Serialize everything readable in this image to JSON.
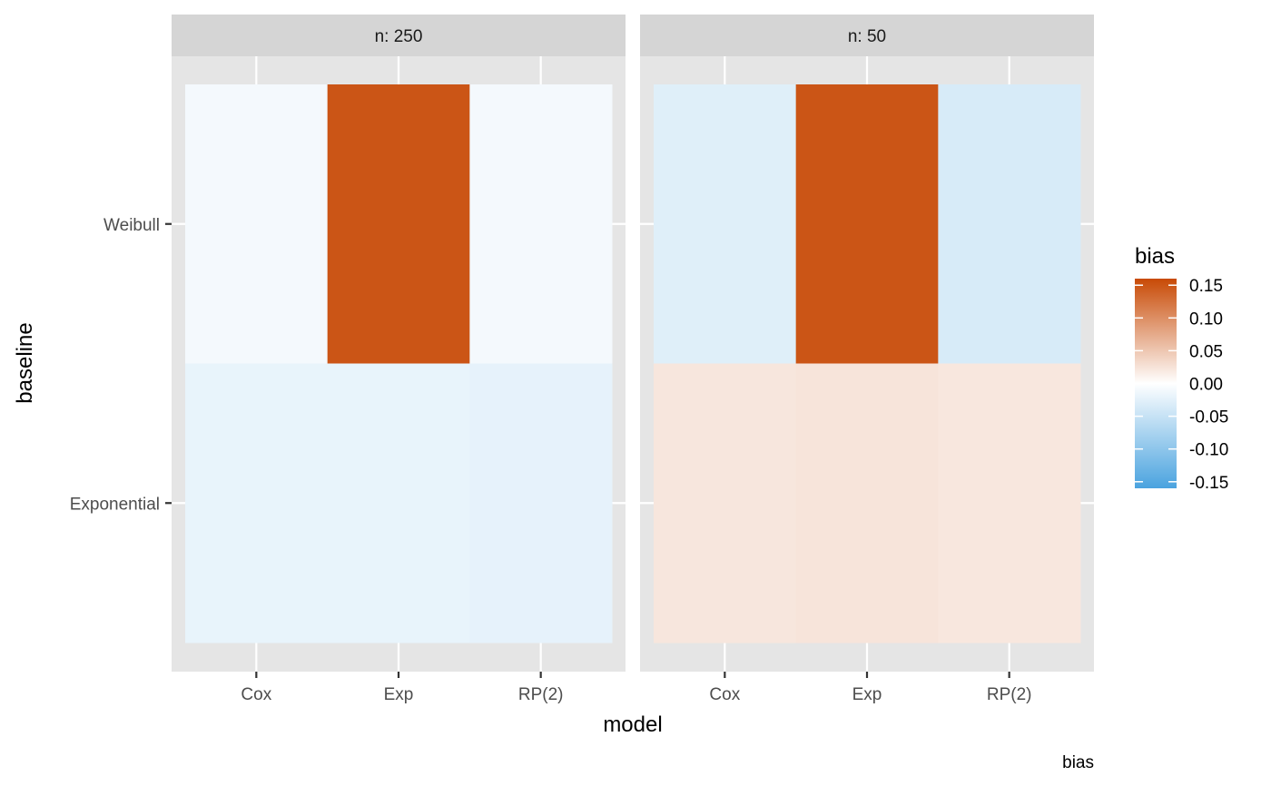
{
  "chart_data": {
    "type": "heatmap",
    "xlabel": "model",
    "ylabel": "baseline",
    "x_categories": [
      "Cox",
      "Exp",
      "RP(2)"
    ],
    "y_categories": [
      "Exponential",
      "Weibull"
    ],
    "facets": [
      {
        "label": "n: 250",
        "cells": [
          {
            "model": "Cox",
            "baseline": "Weibull",
            "value": -0.01
          },
          {
            "model": "Exp",
            "baseline": "Weibull",
            "value": 0.15
          },
          {
            "model": "RP(2)",
            "baseline": "Weibull",
            "value": -0.01
          },
          {
            "model": "Cox",
            "baseline": "Exponential",
            "value": -0.02
          },
          {
            "model": "Exp",
            "baseline": "Exponential",
            "value": -0.02
          },
          {
            "model": "RP(2)",
            "baseline": "Exponential",
            "value": -0.022
          }
        ]
      },
      {
        "label": "n: 50",
        "cells": [
          {
            "model": "Cox",
            "baseline": "Weibull",
            "value": -0.028
          },
          {
            "model": "Exp",
            "baseline": "Weibull",
            "value": 0.15
          },
          {
            "model": "RP(2)",
            "baseline": "Weibull",
            "value": -0.035
          },
          {
            "model": "Cox",
            "baseline": "Exponential",
            "value": 0.022
          },
          {
            "model": "Exp",
            "baseline": "Exponential",
            "value": 0.024
          },
          {
            "model": "RP(2)",
            "baseline": "Exponential",
            "value": 0.021
          }
        ]
      }
    ],
    "legend": {
      "title": "bias",
      "position": "right",
      "limits": [
        -0.16,
        0.16
      ],
      "breaks": [
        0.15,
        0.1,
        0.05,
        0.0,
        -0.05,
        -0.1,
        -0.15
      ],
      "break_labels": [
        "0.15",
        "0.10",
        "0.05",
        "0.00",
        "-0.05",
        "-0.10",
        "-0.15"
      ],
      "low_color": "#4aa3df",
      "mid_color": "#ffffff",
      "high_color": "#c84a06"
    },
    "caption": "bias",
    "panel_background": "#e5e5e5",
    "strip_background": "#d5d5d5",
    "grid": true
  }
}
